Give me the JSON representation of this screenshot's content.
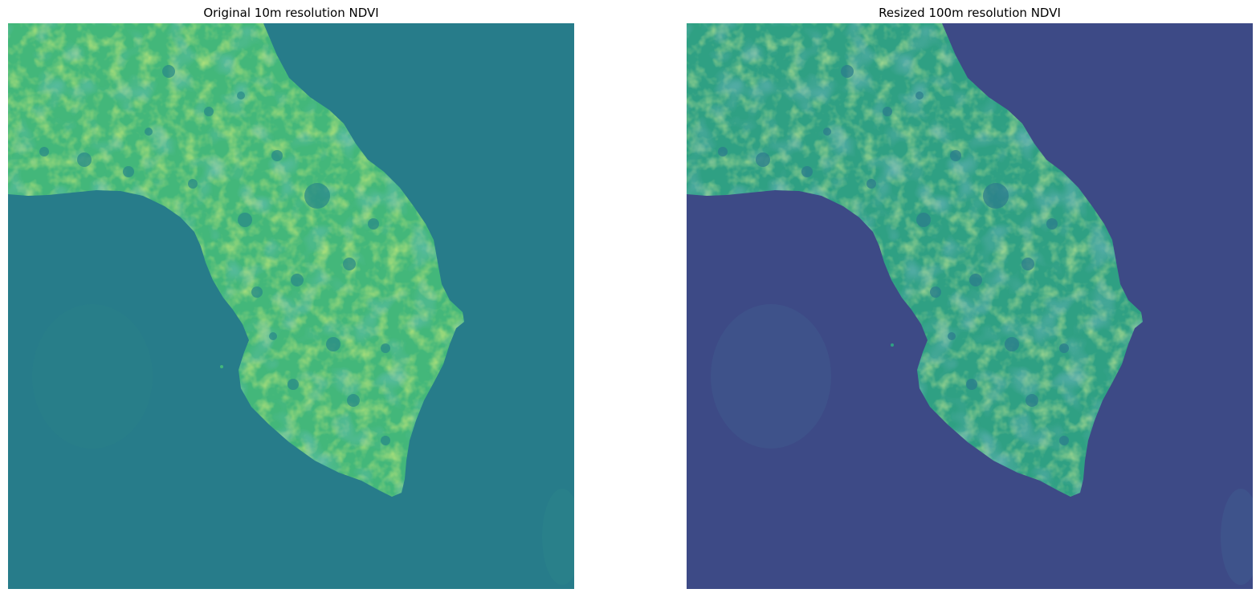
{
  "figure": {
    "panels": [
      {
        "title": "Original 10m resolution NDVI",
        "colors": {
          "water": "#277c8a",
          "land_base": "#43b77a",
          "land_bright": "#9bd43a",
          "land_dark": "#2a8a88",
          "water_haze": "#2a8088"
        }
      },
      {
        "title": "Resized 100m resolution NDVI",
        "colors": {
          "water": "#3d4a86",
          "land_base": "#2fa083",
          "land_bright": "#8fd24c",
          "land_dark": "#2c7d8c",
          "water_haze": "#3f5a8e"
        }
      }
    ]
  }
}
